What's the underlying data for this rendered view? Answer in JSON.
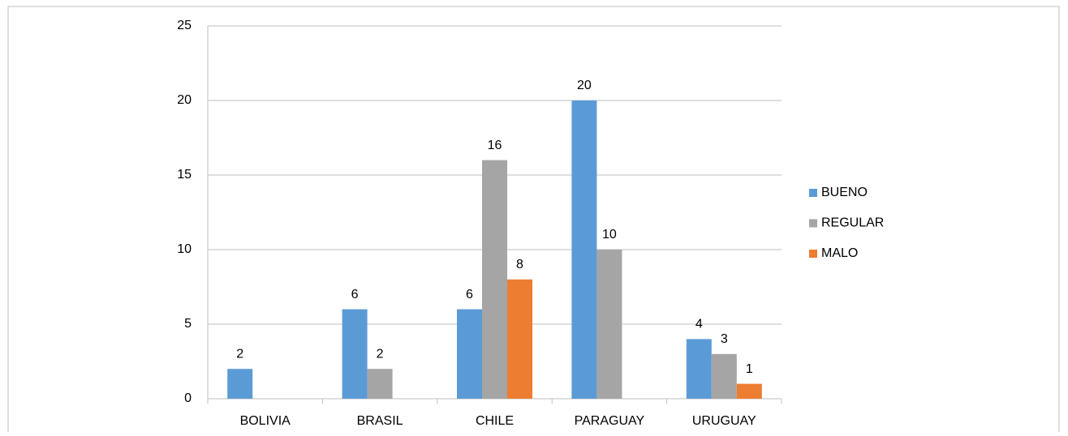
{
  "chart_data": {
    "type": "bar",
    "categories": [
      "BOLIVIA",
      "BRASIL",
      "CHILE",
      "PARAGUAY",
      "URUGUAY"
    ],
    "series": [
      {
        "name": "BUENO",
        "color": "#5b9bd5",
        "values": [
          2,
          6,
          6,
          20,
          4
        ]
      },
      {
        "name": "REGULAR",
        "color": "#a5a5a5",
        "values": [
          null,
          2,
          16,
          10,
          3
        ]
      },
      {
        "name": "MALO",
        "color": "#ed7d31",
        "values": [
          null,
          null,
          8,
          null,
          1
        ]
      }
    ],
    "ylim": [
      0,
      25
    ],
    "yticks": [
      0,
      5,
      10,
      15,
      20,
      25
    ],
    "grid": true,
    "legend": "right"
  }
}
